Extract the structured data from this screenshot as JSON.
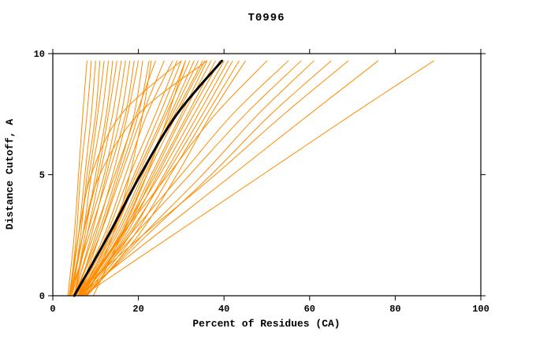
{
  "chart_data": {
    "type": "line",
    "title": "T0996",
    "xlabel": "Percent of Residues (CA)",
    "ylabel": "Distance Cutoff, A",
    "xlim": [
      0,
      100
    ],
    "ylim": [
      0,
      10
    ],
    "xticks": [
      0,
      20,
      40,
      60,
      80,
      100
    ],
    "yticks": [
      0,
      5,
      10
    ],
    "grid": false,
    "legend": "none",
    "sample_y": [
      0,
      2.5,
      5,
      7.5,
      9.7
    ],
    "series": [
      {
        "name": "model-curves",
        "color": "#ff8c00",
        "width": 1,
        "curves": [
          [
            3.5,
            5,
            6,
            7,
            8
          ],
          [
            4,
            5.5,
            6.5,
            8,
            9
          ],
          [
            4,
            6,
            7.5,
            9,
            10
          ],
          [
            4.5,
            6.5,
            8,
            10,
            11
          ],
          [
            3.8,
            6,
            8.5,
            10.5,
            12
          ],
          [
            4.2,
            7,
            9,
            11.5,
            13
          ],
          [
            5,
            7.5,
            10,
            12.5,
            14
          ],
          [
            4,
            7,
            10.5,
            13,
            15
          ],
          [
            5,
            8,
            11,
            14,
            16
          ],
          [
            4.5,
            8,
            12,
            15,
            17
          ],
          [
            5,
            9,
            12.5,
            16,
            18
          ],
          [
            4,
            8.5,
            13,
            17,
            19
          ],
          [
            5.5,
            10,
            14,
            17.5,
            20
          ],
          [
            5,
            10.5,
            15,
            19,
            21
          ],
          [
            6,
            11,
            15.5,
            20,
            22.5
          ],
          [
            4.8,
            9.5,
            14.5,
            19.5,
            24
          ],
          [
            5,
            11,
            16,
            21,
            26
          ],
          [
            5.5,
            12,
            17,
            22,
            28
          ],
          [
            6,
            12.5,
            18,
            24,
            29
          ],
          [
            5,
            13,
            19,
            25,
            30
          ],
          [
            6.5,
            13.5,
            19.5,
            26,
            31
          ],
          [
            5.8,
            14,
            20,
            26.5,
            32
          ],
          [
            6,
            14.5,
            21,
            27.5,
            33
          ],
          [
            6.2,
            15,
            21.5,
            28,
            34
          ],
          [
            5.5,
            13.5,
            20.5,
            28.5,
            35
          ],
          [
            6.8,
            15.5,
            22,
            29,
            35.5
          ],
          [
            6,
            16,
            23,
            30,
            36
          ],
          [
            7,
            16.5,
            23.5,
            30.5,
            37
          ],
          [
            6.4,
            15.8,
            24,
            31.5,
            38
          ],
          [
            7.2,
            17,
            24.5,
            32,
            39
          ],
          [
            6.6,
            16.2,
            25,
            33,
            40
          ],
          [
            7.5,
            18,
            26,
            34,
            41
          ],
          [
            6.9,
            17.5,
            26.5,
            35,
            42
          ],
          [
            7.8,
            19,
            27.5,
            36,
            43.5
          ],
          [
            8,
            20,
            29,
            37,
            45
          ],
          [
            4,
            6,
            9,
            16,
            30
          ],
          [
            4.5,
            7,
            11,
            20,
            36
          ],
          [
            9.5,
            16,
            22,
            27,
            31
          ],
          [
            8,
            14,
            18,
            21,
            23
          ],
          [
            6,
            16,
            27,
            38,
            50
          ],
          [
            7,
            18,
            30,
            42,
            55
          ],
          [
            6.5,
            19,
            32,
            45,
            58
          ],
          [
            8,
            21,
            35,
            48,
            61
          ],
          [
            7.5,
            22,
            37,
            51,
            65
          ],
          [
            5,
            21,
            38,
            54,
            69
          ],
          [
            6,
            24,
            42,
            60,
            76
          ],
          [
            7,
            28,
            49,
            70,
            89
          ]
        ]
      },
      {
        "name": "highlight-curve",
        "color": "#000000",
        "width": 3,
        "curves": [
          [
            5,
            13,
            20.5,
            29,
            39.5
          ]
        ]
      }
    ]
  }
}
